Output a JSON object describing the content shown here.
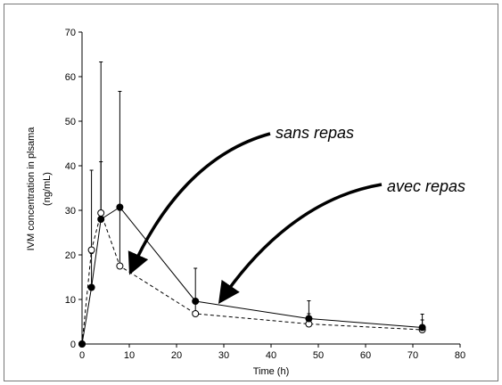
{
  "chart_data": {
    "type": "line",
    "xlabel": "Time (h)",
    "ylabel": "IVM concentration in plsama",
    "ylabel_unit": "(ng/mL)",
    "xlim": [
      0,
      80
    ],
    "ylim": [
      0,
      70
    ],
    "xticks": [
      0,
      10,
      20,
      30,
      40,
      50,
      60,
      70,
      80
    ],
    "yticks": [
      0,
      10,
      20,
      30,
      40,
      50,
      60,
      70
    ],
    "grid": false,
    "series": [
      {
        "key": "filled",
        "style": "solid",
        "marker": "filled-circle",
        "color": "#000000",
        "x": [
          0,
          2,
          4,
          8,
          24,
          48,
          72
        ],
        "y": [
          0,
          12.7,
          28,
          30.7,
          9.6,
          5.7,
          3.7
        ],
        "err_upper": [
          0,
          20.3,
          63.3,
          56.7,
          17.0,
          9.7,
          6.7
        ]
      },
      {
        "key": "open",
        "style": "dashed",
        "marker": "open-circle",
        "color": "#000000",
        "x": [
          0,
          2,
          4,
          8,
          24,
          48,
          72
        ],
        "y": [
          0,
          21.1,
          29.4,
          17.5,
          6.8,
          4.5,
          3.2
        ],
        "err_upper": [
          0,
          39.0,
          40.9,
          30.0,
          9.6,
          6.8,
          5.4
        ]
      }
    ],
    "annotations": [
      {
        "text": "sans repas",
        "points_to": [
          10,
          16
        ]
      },
      {
        "text": "avec repas",
        "points_to": [
          29,
          9
        ]
      }
    ]
  }
}
